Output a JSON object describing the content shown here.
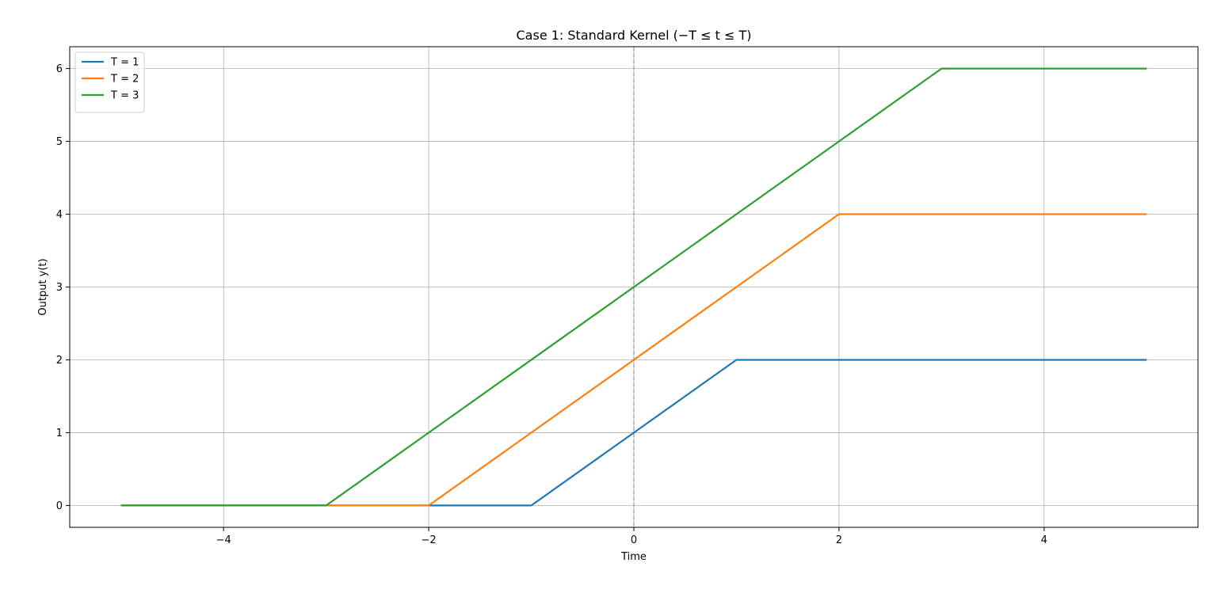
{
  "chart_data": {
    "type": "line",
    "title": "Case 1: Standard Kernel (−T ≤ t ≤ T)",
    "xlabel": "Time",
    "ylabel": "Output y(t)",
    "xlim": [
      -5.5,
      5.5
    ],
    "ylim": [
      -0.3,
      6.3
    ],
    "xticks": [
      -4,
      -2,
      0,
      2,
      4
    ],
    "yticks": [
      0,
      1,
      2,
      3,
      4,
      5,
      6
    ],
    "grid": true,
    "legend_position": "top-left",
    "vline": {
      "x": 0,
      "style": "dashed",
      "color": "#a8a8a8"
    },
    "series": [
      {
        "name": "T = 1",
        "color": "#1f77b4",
        "x": [
          -5,
          -1,
          1,
          5
        ],
        "y": [
          0,
          0,
          2,
          2
        ]
      },
      {
        "name": "T = 2",
        "color": "#ff7f0e",
        "x": [
          -5,
          -2,
          2,
          5
        ],
        "y": [
          0,
          0,
          4,
          4
        ]
      },
      {
        "name": "T = 3",
        "color": "#2ca02c",
        "x": [
          -5,
          -3,
          3,
          5
        ],
        "y": [
          0,
          0,
          6,
          6
        ]
      }
    ]
  }
}
